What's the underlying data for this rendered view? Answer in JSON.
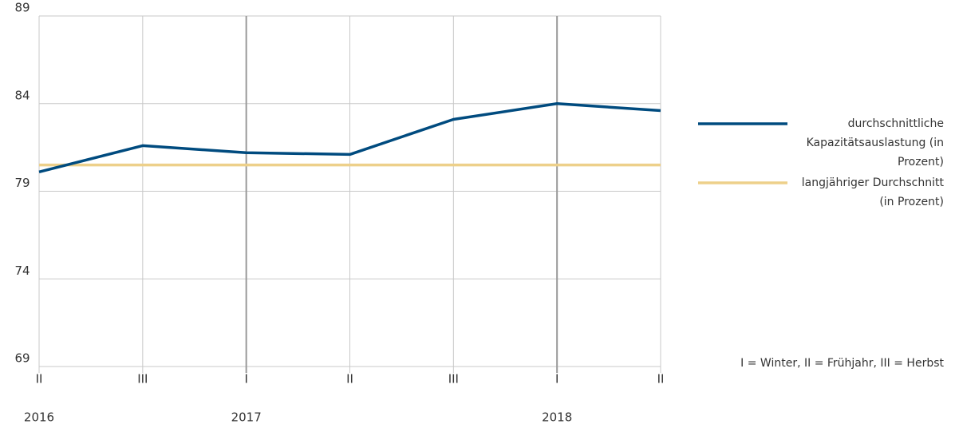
{
  "chart_data": {
    "type": "line",
    "categories": [
      "II",
      "III",
      "I",
      "II",
      "III",
      "I",
      "II"
    ],
    "years": [
      "2016",
      null,
      "2017",
      null,
      null,
      "2018",
      null
    ],
    "series": [
      {
        "name": "durchschnittliche Kapazitätsauslastung (in Prozent)",
        "color": "#004b7f",
        "values": [
          80.1,
          81.6,
          81.2,
          81.1,
          83.1,
          84.0,
          83.6
        ]
      },
      {
        "name": "langjähriger Durchschnitt (in Prozent)",
        "color": "#edd08a",
        "values": [
          80.5,
          80.5,
          80.5,
          80.5,
          80.5,
          80.5,
          80.5
        ]
      }
    ],
    "ylim": [
      69,
      89
    ],
    "yticks": [
      69,
      74,
      79,
      84,
      89
    ],
    "grid": true,
    "note": "I = Winter, II = Frühjahr, III = Herbst"
  }
}
